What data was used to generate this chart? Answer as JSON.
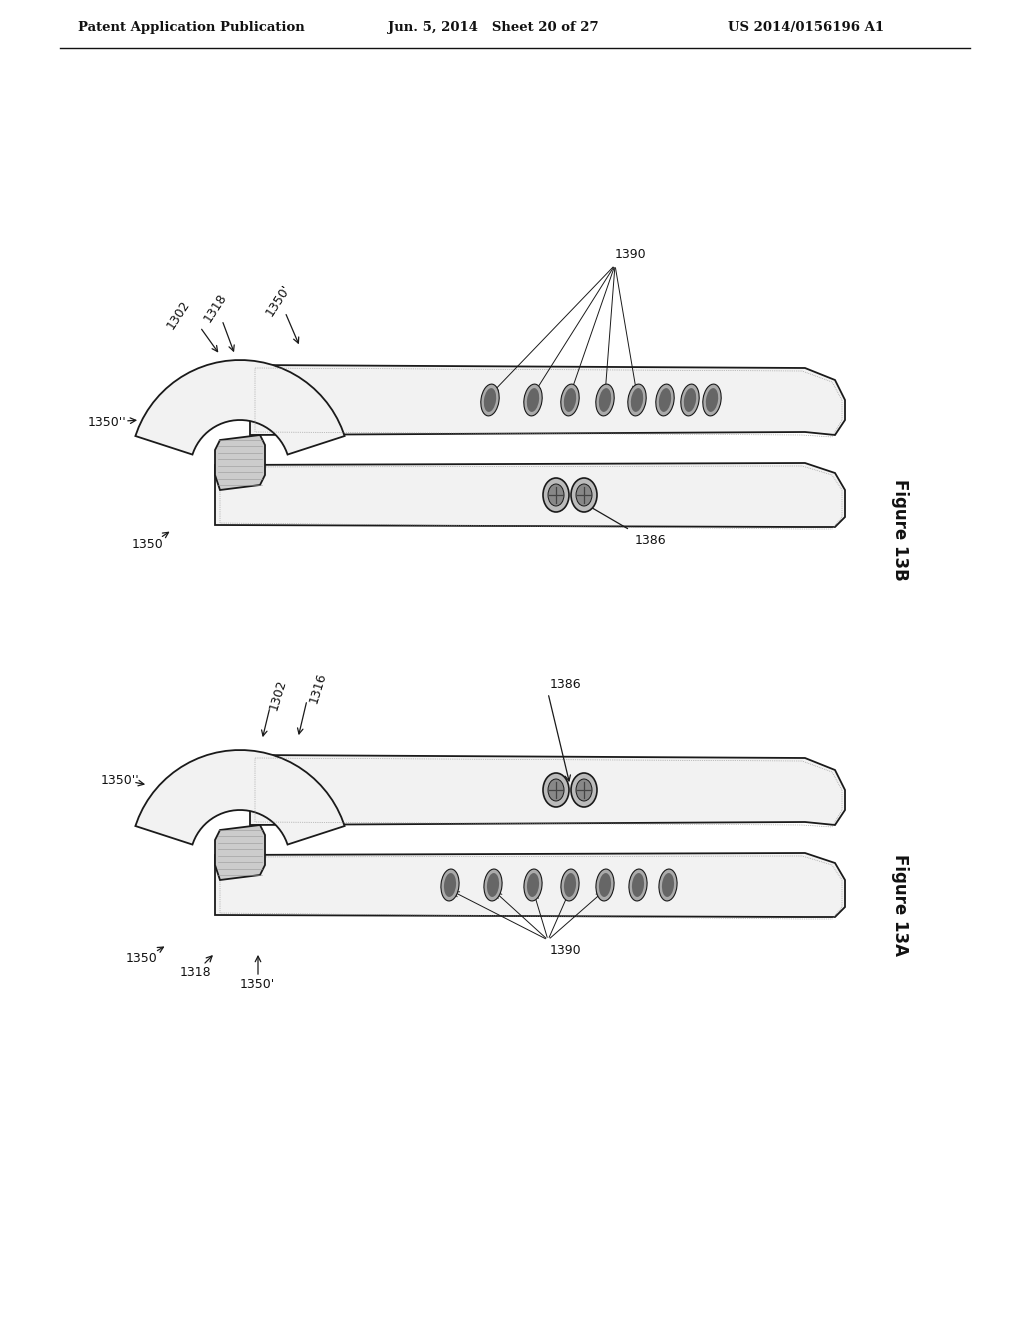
{
  "bg_color": "#ffffff",
  "header_left": "Patent Application Publication",
  "header_center": "Jun. 5, 2014   Sheet 20 of 27",
  "header_right": "US 2014/0156196 A1",
  "fig13b_label": "Figure 13B",
  "fig13a_label": "Figure 13A",
  "line_color": "#1a1a1a",
  "fill_white": "#ffffff",
  "fill_light": "#f2f2f2",
  "fill_shade": "#cccccc",
  "fill_dark": "#999999",
  "hole_fill": "#888888",
  "buckle_fill": "#bbbbbb"
}
